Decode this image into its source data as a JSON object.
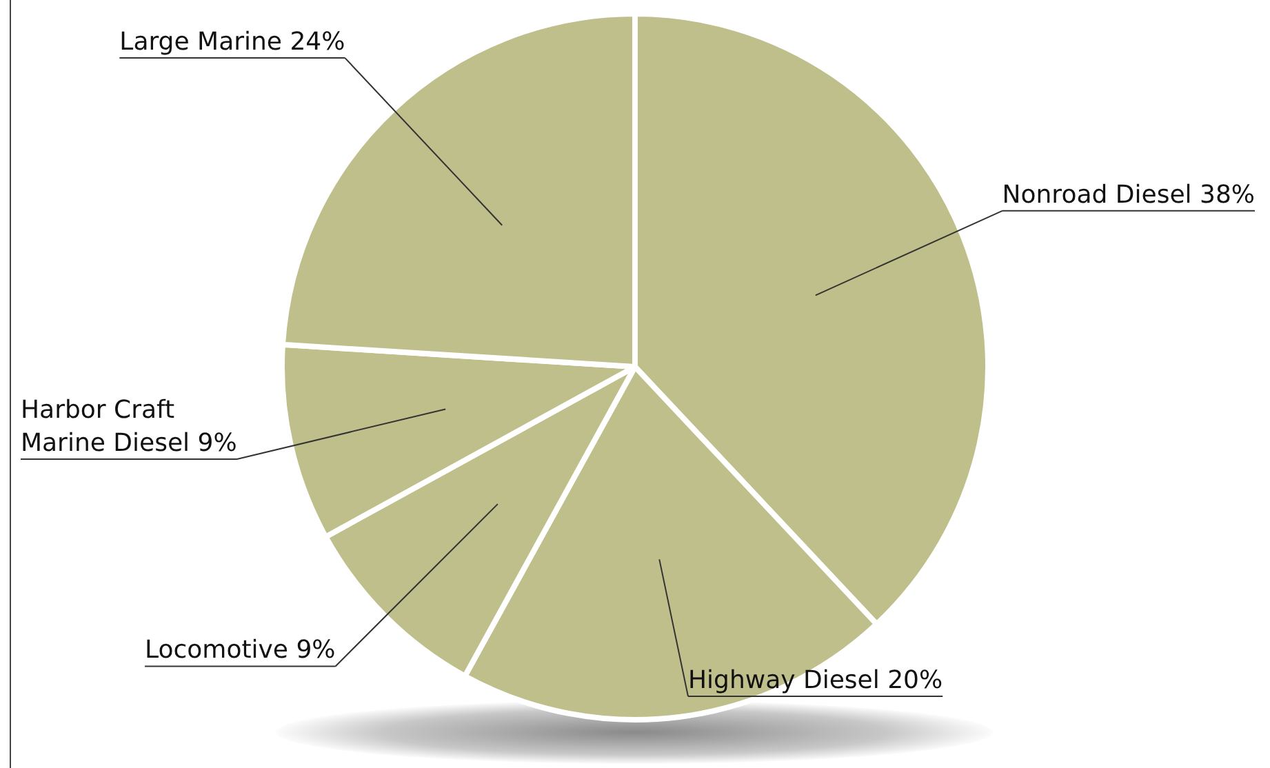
{
  "chart_data": {
    "type": "pie",
    "categories": [
      "Nonroad Diesel",
      "Highway Diesel",
      "Locomotive",
      "Harbor Craft Marine Diesel",
      "Large Marine"
    ],
    "values": [
      38,
      20,
      9,
      9,
      24
    ],
    "value_labels": [
      "38%",
      "20%",
      "9%",
      "9%",
      "24%"
    ],
    "colors": [
      "#bfbf8b",
      "#bfbf8b",
      "#bfbf8b",
      "#bfbf8b",
      "#bfbf8b"
    ],
    "legend": false
  }
}
